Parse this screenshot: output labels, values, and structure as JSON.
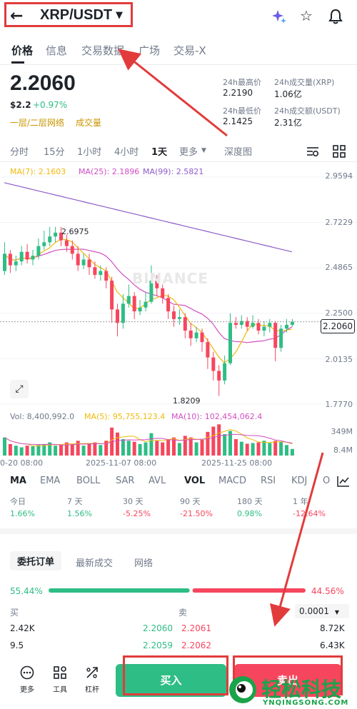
{
  "header": {
    "back_icon": "arrow-left",
    "pair": "XRP/USDT",
    "ai_icon": "sparkle-ai",
    "star_icon": "star",
    "bell_icon": "bell"
  },
  "tabs": [
    "价格",
    "信息",
    "交易数据",
    "广场",
    "交易-X"
  ],
  "price": {
    "last": "2.2060",
    "usd": "$2.2",
    "change": "+0.97%",
    "network": "一层/二层网络",
    "volume_tag": "成交量"
  },
  "stats": {
    "high_label": "24h最高价",
    "high": "2.2190",
    "vol_label": "24h成交量(XRP)",
    "vol": "1.06亿",
    "low_label": "24h最低价",
    "low": "2.1425",
    "amt_label": "24h成交额(USDT)",
    "amt": "2.31亿"
  },
  "timeframes": [
    "分时",
    "15分",
    "1小时",
    "4小时",
    "1天",
    "更多",
    "深度图"
  ],
  "ma": {
    "ma7": "MA(7): 2.1603",
    "ma25": "MA(25): 2.1896",
    "ma99": "MA(99): 2.5821"
  },
  "price_axis": [
    "2.9594",
    "2.7229",
    "2.4865",
    "2.2500",
    "2.0135",
    "1.7770"
  ],
  "current_price_tag": "2.2060",
  "high_mark": "2.6975",
  "low_mark": "1.8209",
  "volume": {
    "vol": "Vol: 8,400,992.0",
    "ma5": "MA(5): 95,755,123.4",
    "ma10": "MA(10): 102,454,062.4",
    "axis_top": "349M",
    "axis_bot": "8.4M"
  },
  "dates": [
    "0-20 08:00",
    "2025-11-07 08:00",
    "2025-11-25 08:00"
  ],
  "watermark": "BINANCE",
  "indicators": [
    "MA",
    "EMA",
    "BOLL",
    "SAR",
    "AVL",
    "VOL",
    "MACD",
    "RSI",
    "KDJ",
    "O"
  ],
  "performance": [
    {
      "label": "今日",
      "value": "1.66%"
    },
    {
      "label": "7 天",
      "value": "1.56%"
    },
    {
      "label": "30 天",
      "value": "-5.25%"
    },
    {
      "label": "90 天",
      "value": "-21.50%"
    },
    {
      "label": "180 天",
      "value": "0.98%"
    },
    {
      "label": "1 年",
      "value": "-12.64%"
    }
  ],
  "order_tabs": [
    "委托订单",
    "最新成交",
    "网络"
  ],
  "ratio": {
    "buy": "55.44%",
    "sell": "44.56%",
    "buy_fraction": 0.5544
  },
  "book": {
    "buy_label": "买",
    "sell_label": "卖",
    "tick": "0.0001",
    "rows": [
      {
        "bqty": "2.42K",
        "bprice": "2.2060",
        "sprice": "2.2061",
        "sqty": "8.72K"
      },
      {
        "bqty": "9.5",
        "bprice": "2.2059",
        "sprice": "2.2062",
        "sqty": "6.43K"
      }
    ]
  },
  "bottom": {
    "more": "更多",
    "tools": "工具",
    "leverage": "杠杆",
    "buy": "买入",
    "sell": "卖出"
  },
  "watermark_brand": {
    "cn": "轻松科技",
    "en": "YNQINGSONG.COM"
  },
  "colors": {
    "green": "#2ebd85",
    "red": "#f6465d",
    "annotation": "#e23b3b",
    "ma7": "#f0b90b",
    "ma25": "#d14ec2",
    "ma99": "#8e5cc9"
  },
  "candles": [
    [
      2.47,
      2.56,
      2.62,
      2.45
    ],
    [
      2.56,
      2.5,
      2.58,
      2.46
    ],
    [
      2.5,
      2.52,
      2.55,
      2.47
    ],
    [
      2.52,
      2.57,
      2.6,
      2.5
    ],
    [
      2.57,
      2.53,
      2.61,
      2.51
    ],
    [
      2.53,
      2.55,
      2.58,
      2.5
    ],
    [
      2.55,
      2.6,
      2.64,
      2.53
    ],
    [
      2.6,
      2.62,
      2.68,
      2.58
    ],
    [
      2.62,
      2.65,
      2.7,
      2.6
    ],
    [
      2.65,
      2.67,
      2.7,
      2.62
    ],
    [
      2.67,
      2.63,
      2.7,
      2.6
    ],
    [
      2.63,
      2.6,
      2.66,
      2.57
    ],
    [
      2.6,
      2.56,
      2.63,
      2.53
    ],
    [
      2.56,
      2.5,
      2.6,
      2.47
    ],
    [
      2.5,
      2.53,
      2.56,
      2.48
    ],
    [
      2.53,
      2.49,
      2.56,
      2.45
    ],
    [
      2.49,
      2.45,
      2.52,
      2.43
    ],
    [
      2.45,
      2.47,
      2.5,
      2.42
    ],
    [
      2.47,
      2.42,
      2.49,
      2.38
    ],
    [
      2.42,
      2.27,
      2.44,
      2.2
    ],
    [
      2.27,
      2.2,
      2.3,
      2.13
    ],
    [
      2.2,
      2.3,
      2.35,
      2.17
    ],
    [
      2.3,
      2.34,
      2.4,
      2.28
    ],
    [
      2.34,
      2.26,
      2.36,
      2.22
    ],
    [
      2.26,
      2.28,
      2.32,
      2.24
    ],
    [
      2.28,
      2.31,
      2.36,
      2.26
    ],
    [
      2.31,
      2.42,
      2.5,
      2.3
    ],
    [
      2.42,
      2.38,
      2.45,
      2.34
    ],
    [
      2.38,
      2.33,
      2.4,
      2.3
    ],
    [
      2.33,
      2.26,
      2.35,
      2.22
    ],
    [
      2.26,
      2.22,
      2.29,
      2.18
    ],
    [
      2.22,
      2.23,
      2.27,
      2.19
    ],
    [
      2.23,
      2.16,
      2.25,
      2.12
    ],
    [
      2.16,
      2.12,
      2.2,
      2.08
    ],
    [
      2.12,
      2.15,
      2.18,
      2.1
    ],
    [
      2.15,
      2.1,
      2.17,
      2.05
    ],
    [
      2.1,
      2.02,
      2.12,
      1.96
    ],
    [
      2.02,
      1.95,
      2.05,
      1.9
    ],
    [
      1.95,
      1.9,
      1.98,
      1.82
    ],
    [
      1.9,
      1.99,
      2.03,
      1.88
    ],
    [
      1.99,
      2.2,
      2.25,
      1.98
    ],
    [
      2.2,
      2.19,
      2.23,
      2.17
    ],
    [
      2.19,
      2.21,
      2.24,
      2.17
    ],
    [
      2.21,
      2.18,
      2.23,
      2.16
    ],
    [
      2.18,
      2.2,
      2.24,
      2.17
    ],
    [
      2.2,
      2.16,
      2.22,
      2.14
    ],
    [
      2.16,
      2.18,
      2.21,
      2.13
    ],
    [
      2.18,
      2.2,
      2.22,
      2.15
    ],
    [
      2.2,
      2.07,
      2.21,
      2.0
    ],
    [
      2.07,
      2.17,
      2.19,
      2.05
    ],
    [
      2.17,
      2.19,
      2.22,
      2.15
    ],
    [
      2.19,
      2.206,
      2.22,
      2.18
    ]
  ],
  "vols": [
    0.55,
    0.35,
    0.3,
    0.25,
    0.3,
    0.28,
    0.32,
    0.35,
    0.4,
    0.3,
    0.32,
    0.4,
    0.35,
    0.45,
    0.3,
    0.35,
    0.4,
    0.32,
    0.45,
    0.85,
    0.7,
    0.5,
    0.45,
    0.42,
    0.35,
    0.4,
    0.68,
    0.45,
    0.4,
    0.5,
    0.55,
    0.38,
    0.6,
    0.55,
    0.4,
    0.48,
    0.72,
    0.88,
    0.95,
    0.65,
    0.75,
    0.5,
    0.42,
    0.36,
    0.38,
    0.4,
    0.45,
    0.38,
    0.45,
    0.42,
    0.32,
    0.2
  ]
}
